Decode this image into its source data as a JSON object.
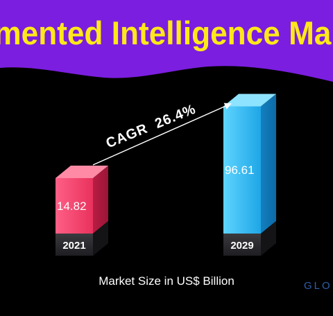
{
  "banner": {
    "title": "mented Intelligence Ma",
    "background": "#7b1ee0",
    "title_color": "#ffe81a"
  },
  "chart_data": {
    "type": "bar",
    "categories": [
      "2021",
      "2029"
    ],
    "values": [
      14.82,
      96.61
    ],
    "value_labels": [
      "14.82",
      "96.61"
    ],
    "xlabel": "Market Size in US$ Billion",
    "ylabel": "",
    "grid": false,
    "annotation": {
      "text": "CAGR  26.4%",
      "from_category": "2021",
      "to_category": "2029"
    },
    "colors": [
      "#ef3d67",
      "#2bb5ef"
    ]
  },
  "brand": {
    "text": "GLO"
  }
}
